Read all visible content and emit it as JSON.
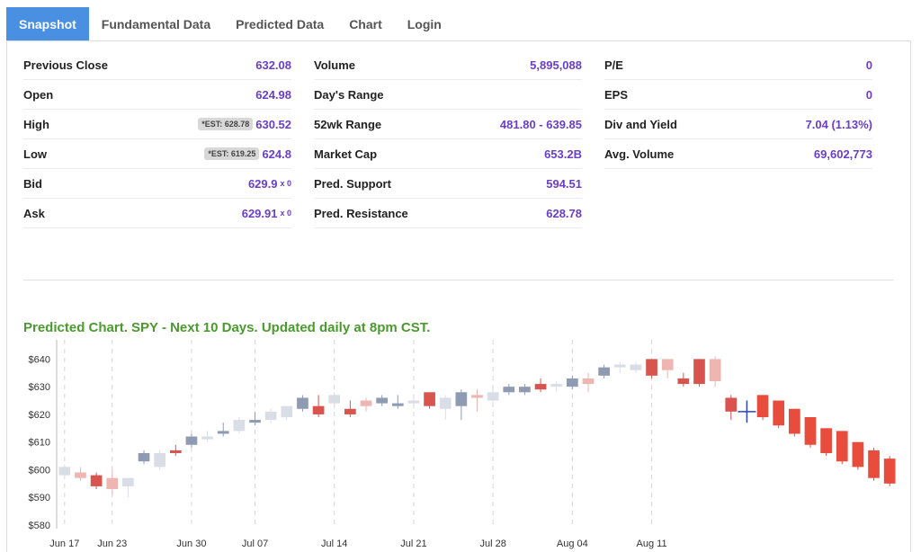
{
  "tabs": [
    {
      "label": "Snapshot",
      "active": true
    },
    {
      "label": "Fundamental Data",
      "active": false
    },
    {
      "label": "Predicted Data",
      "active": false
    },
    {
      "label": "Chart",
      "active": false
    },
    {
      "label": "Login",
      "active": false
    }
  ],
  "stats": {
    "col1": [
      {
        "label": "Previous Close",
        "value": "632.08"
      },
      {
        "label": "Open",
        "value": "624.98"
      },
      {
        "label": "High",
        "value": "630.52",
        "badge": "*EST: 628.78"
      },
      {
        "label": "Low",
        "value": "624.8",
        "badge": "*EST: 619.25"
      },
      {
        "label": "Bid",
        "value": "629.9",
        "size": "x 0"
      },
      {
        "label": "Ask",
        "value": "629.91",
        "size": "x 0"
      }
    ],
    "col2": [
      {
        "label": "Volume",
        "value": "5,895,088"
      },
      {
        "label": "Day's Range",
        "value": ""
      },
      {
        "label": "52wk Range",
        "value": "481.80 - 639.85"
      },
      {
        "label": "Market Cap",
        "value": "653.2B"
      },
      {
        "label": "Pred. Support",
        "value": "594.51"
      },
      {
        "label": "Pred. Resistance",
        "value": "628.78"
      }
    ],
    "col3": [
      {
        "label": "P/E",
        "value": "0"
      },
      {
        "label": "EPS",
        "value": "0"
      },
      {
        "label": "Div and Yield",
        "value": "7.04 (1.13%)"
      },
      {
        "label": "Avg. Volume",
        "value": "69,602,773"
      }
    ]
  },
  "chart_title": "Predicted Chart. SPY - Next 10 Days. Updated daily at 8pm CST.",
  "colors": {
    "accent": "#4a90e2",
    "value": "#6a3fc8",
    "title_green": "#4a9a2e",
    "bull_dark": "#8f9bb3",
    "bull_light": "#d9dde6",
    "bear_dark": "#d9534f",
    "bear_light": "#efb5b0",
    "pred": "#e74c3c"
  },
  "chart_data": {
    "type": "candlestick",
    "ylim": [
      580,
      645
    ],
    "yticks": [
      580,
      590,
      600,
      610,
      620,
      630,
      640
    ],
    "ytick_labels": [
      "$580",
      "$590",
      "$600",
      "$610",
      "$620",
      "$630",
      "$640"
    ],
    "xticks": [
      "Jun 17",
      "Jun 23",
      "Jun 30",
      "Jul 07",
      "Jul 14",
      "Jul 21",
      "Jul 28",
      "Aug 04",
      "Aug 11"
    ],
    "xtick_index": [
      0,
      3,
      8,
      12,
      17,
      22,
      27,
      32,
      37
    ],
    "historical": [
      {
        "o": 598,
        "c": 601,
        "h": 602,
        "l": 597,
        "shade": "light"
      },
      {
        "o": 599,
        "c": 597,
        "h": 601,
        "l": 596,
        "shade": "light"
      },
      {
        "o": 598,
        "c": 594,
        "h": 599,
        "l": 593,
        "shade": "dark"
      },
      {
        "o": 597,
        "c": 593,
        "h": 600,
        "l": 591,
        "shade": "light"
      },
      {
        "o": 594,
        "c": 597,
        "h": 597,
        "l": 590,
        "shade": "light"
      },
      {
        "o": 603,
        "c": 606,
        "h": 607,
        "l": 602,
        "shade": "dark"
      },
      {
        "o": 601,
        "c": 606,
        "h": 607,
        "l": 600,
        "shade": "light"
      },
      {
        "o": 607,
        "c": 606,
        "h": 609,
        "l": 605,
        "shade": "dark"
      },
      {
        "o": 609,
        "c": 612,
        "h": 613,
        "l": 608,
        "shade": "dark"
      },
      {
        "o": 611,
        "c": 612,
        "h": 614,
        "l": 610,
        "shade": "light"
      },
      {
        "o": 613,
        "c": 614,
        "h": 617,
        "l": 612,
        "shade": "dark"
      },
      {
        "o": 614,
        "c": 618,
        "h": 619,
        "l": 613,
        "shade": "light"
      },
      {
        "o": 617,
        "c": 618,
        "h": 621,
        "l": 616,
        "shade": "dark"
      },
      {
        "o": 618,
        "c": 621,
        "h": 622,
        "l": 617,
        "shade": "light"
      },
      {
        "o": 619,
        "c": 623,
        "h": 623,
        "l": 618,
        "shade": "light"
      },
      {
        "o": 622,
        "c": 626,
        "h": 627,
        "l": 621,
        "shade": "dark"
      },
      {
        "o": 623,
        "c": 620,
        "h": 627,
        "l": 619,
        "shade": "dark"
      },
      {
        "o": 624,
        "c": 627,
        "h": 628,
        "l": 622,
        "shade": "light"
      },
      {
        "o": 622,
        "c": 620,
        "h": 625,
        "l": 619,
        "shade": "dark"
      },
      {
        "o": 625,
        "c": 623,
        "h": 626,
        "l": 621,
        "shade": "light"
      },
      {
        "o": 624,
        "c": 626,
        "h": 627,
        "l": 623,
        "shade": "dark"
      },
      {
        "o": 623,
        "c": 624,
        "h": 627,
        "l": 622,
        "shade": "dark"
      },
      {
        "o": 624,
        "c": 625,
        "h": 626,
        "l": 622,
        "shade": "light"
      },
      {
        "o": 628,
        "c": 623,
        "h": 628,
        "l": 622,
        "shade": "dark"
      },
      {
        "o": 622,
        "c": 626,
        "h": 627,
        "l": 618,
        "shade": "light"
      },
      {
        "o": 623,
        "c": 628,
        "h": 629,
        "l": 618,
        "shade": "dark"
      },
      {
        "o": 627,
        "c": 626,
        "h": 629,
        "l": 621,
        "shade": "light"
      },
      {
        "o": 625,
        "c": 628,
        "h": 630,
        "l": 623,
        "shade": "light"
      },
      {
        "o": 628,
        "c": 630,
        "h": 631,
        "l": 627,
        "shade": "dark"
      },
      {
        "o": 628,
        "c": 630,
        "h": 631,
        "l": 627,
        "shade": "dark"
      },
      {
        "o": 631,
        "c": 629,
        "h": 633,
        "l": 628,
        "shade": "dark"
      },
      {
        "o": 630,
        "c": 631,
        "h": 632,
        "l": 628,
        "shade": "light"
      },
      {
        "o": 630,
        "c": 633,
        "h": 634,
        "l": 629,
        "shade": "dark"
      },
      {
        "o": 633,
        "c": 631,
        "h": 635,
        "l": 628,
        "shade": "light"
      },
      {
        "o": 634,
        "c": 637,
        "h": 638,
        "l": 633,
        "shade": "dark"
      },
      {
        "o": 637,
        "c": 638,
        "h": 639,
        "l": 635,
        "shade": "light"
      },
      {
        "o": 636,
        "c": 638,
        "h": 639,
        "l": 635,
        "shade": "light"
      },
      {
        "o": 640,
        "c": 634,
        "h": 640,
        "l": 633,
        "shade": "dark"
      },
      {
        "o": 640,
        "c": 636,
        "h": 640,
        "l": 633,
        "shade": "light"
      },
      {
        "o": 633,
        "c": 631,
        "h": 635,
        "l": 630,
        "shade": "dark"
      },
      {
        "o": 640,
        "c": 631,
        "h": 640,
        "l": 630,
        "shade": "dark"
      },
      {
        "o": 640,
        "c": 632,
        "h": 641,
        "l": 630,
        "shade": "light"
      },
      {
        "o": 626,
        "c": 621,
        "h": 627,
        "l": 618,
        "shade": "dark"
      }
    ],
    "current": {
      "price": 621,
      "h": 625,
      "l": 617
    },
    "predicted": [
      {
        "o": 627,
        "c": 619,
        "h": 627,
        "l": 618
      },
      {
        "o": 625,
        "c": 616,
        "h": 625,
        "l": 615
      },
      {
        "o": 622,
        "c": 613,
        "h": 622,
        "l": 612
      },
      {
        "o": 619,
        "c": 609,
        "h": 619,
        "l": 608
      },
      {
        "o": 615,
        "c": 606,
        "h": 615,
        "l": 605
      },
      {
        "o": 614,
        "c": 603,
        "h": 614,
        "l": 602
      },
      {
        "o": 610,
        "c": 601,
        "h": 610,
        "l": 600
      },
      {
        "o": 607,
        "c": 597,
        "h": 608,
        "l": 596
      },
      {
        "o": 604,
        "c": 595,
        "h": 605,
        "l": 594
      }
    ]
  }
}
